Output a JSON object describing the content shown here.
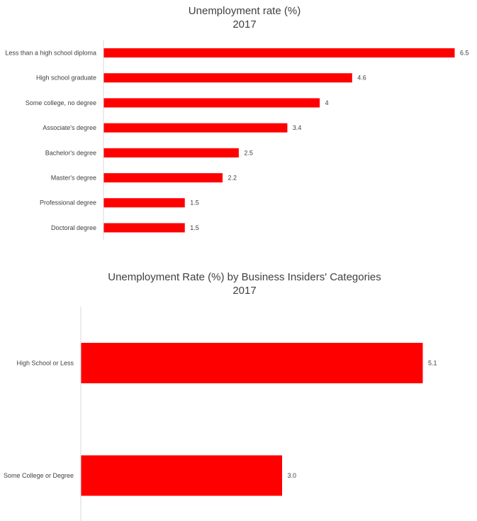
{
  "chart_data": [
    {
      "type": "bar",
      "orientation": "horizontal",
      "title": "Unemployment rate (%)",
      "subtitle": "2017",
      "categories": [
        "Less than a high school diploma",
        "High school graduate",
        "Some college, no degree",
        "Associate's degree",
        "Bachelor's degree",
        "Master's degree",
        "Professional degree",
        "Doctoral degree"
      ],
      "values": [
        6.5,
        4.6,
        4,
        3.4,
        2.5,
        2.2,
        1.5,
        1.5
      ],
      "value_labels": [
        "6.5",
        "4.6",
        "4",
        "3.4",
        "2.5",
        "2.2",
        "1.5",
        "1.5"
      ],
      "bar_color": "#ff0000",
      "xlim": [
        0,
        6.5
      ],
      "grid": false,
      "legend": "none"
    },
    {
      "type": "bar",
      "orientation": "horizontal",
      "title": "Unemployment Rate (%) by Business Insiders' Categories",
      "subtitle": "2017",
      "categories": [
        "High School or Less",
        "Some College or Degree"
      ],
      "values": [
        5.1,
        3.0
      ],
      "value_labels": [
        "5.1",
        "3.0"
      ],
      "bar_color": "#ff0000",
      "xlim": [
        0,
        5.1
      ],
      "grid": false,
      "legend": "none"
    }
  ]
}
